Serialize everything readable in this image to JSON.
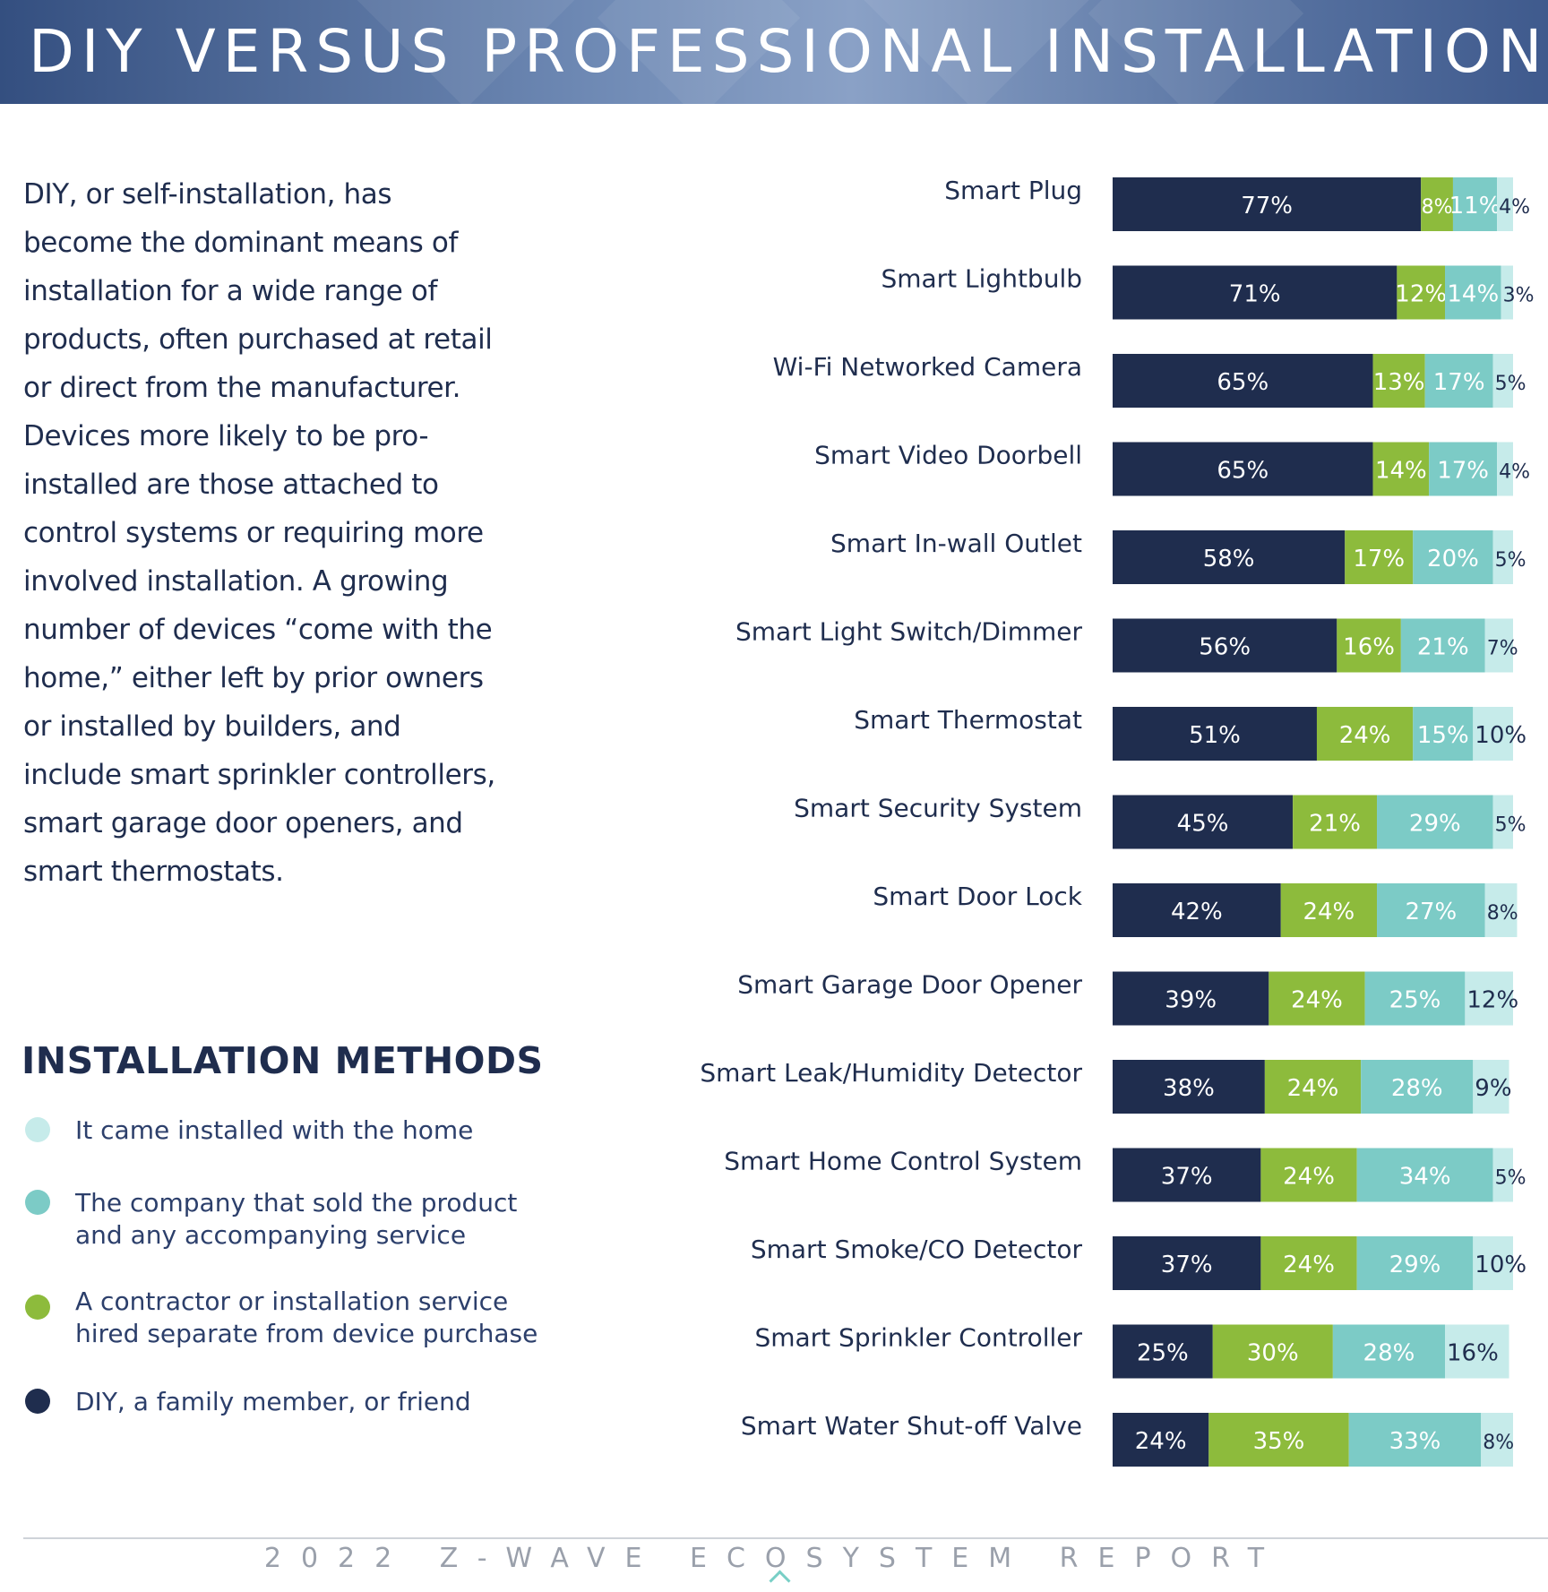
{
  "header": {
    "title": "DIY VERSUS PROFESSIONAL INSTALLATION"
  },
  "intro_text": "DIY, or self-installation, has become the dominant means of installation for a wide range of products, often purchased at retail or direct from the manufacturer. Devices more likely to be pro-installed are those attached to control systems or requiring more involved installation. A growing number of devices “come with the home,” either left by prior owners or installed by builders, and include smart sprinkler controllers, smart garage door openers, and smart thermostats.",
  "legend": {
    "title": "INSTALLATION METHODS",
    "items": [
      {
        "label": "It came installed with the home",
        "color": "#c6ebea"
      },
      {
        "label": "The company that sold the product\nand any accompanying service",
        "color": "#7ccbc6"
      },
      {
        "label": "A contractor or installation service\nhired separate from device purchase",
        "color": "#8dbb3c"
      },
      {
        "label": "DIY, a family member, or friend",
        "color": "#1f2d4e"
      }
    ]
  },
  "chart_data": {
    "type": "bar",
    "orientation": "horizontal",
    "stacked": true,
    "categories": [
      "Smart Plug",
      "Smart Lightbulb",
      "Wi-Fi Networked Camera",
      "Smart Video Doorbell",
      "Smart In-wall Outlet",
      "Smart Light Switch/Dimmer",
      "Smart Thermostat",
      "Smart Security System",
      "Smart Door Lock",
      "Smart Garage Door Opener",
      "Smart Leak/Humidity Detector",
      "Smart Home Control System",
      "Smart Smoke/CO Detector",
      "Smart Sprinkler Controller",
      "Smart Water Shut-off Valve"
    ],
    "series": [
      {
        "name": "DIY, a family member, or friend",
        "color": "#1f2d4e",
        "label_color": "#ffffff",
        "values": [
          77,
          71,
          65,
          65,
          58,
          56,
          51,
          45,
          42,
          39,
          38,
          37,
          37,
          25,
          24
        ]
      },
      {
        "name": "A contractor or installation service hired separate from device purchase",
        "color": "#8dbb3c",
        "label_color": "#ffffff",
        "values": [
          8,
          12,
          13,
          14,
          17,
          16,
          24,
          21,
          24,
          24,
          24,
          24,
          24,
          30,
          35
        ]
      },
      {
        "name": "The company that sold the product and any accompanying service",
        "color": "#7ccbc6",
        "label_color": "#ffffff",
        "values": [
          11,
          14,
          17,
          17,
          20,
          21,
          15,
          29,
          27,
          25,
          28,
          34,
          29,
          28,
          33
        ]
      },
      {
        "name": "It came installed with the home",
        "color": "#c6ebea",
        "label_color": "#1f2d4e",
        "values": [
          4,
          3,
          5,
          4,
          5,
          7,
          10,
          5,
          8,
          12,
          9,
          5,
          10,
          16,
          8
        ]
      }
    ],
    "value_suffix": "%",
    "xlim": [
      0,
      100
    ]
  },
  "footer": {
    "text": "2022 Z-WAVE ECOSYSTEM REPORT"
  }
}
